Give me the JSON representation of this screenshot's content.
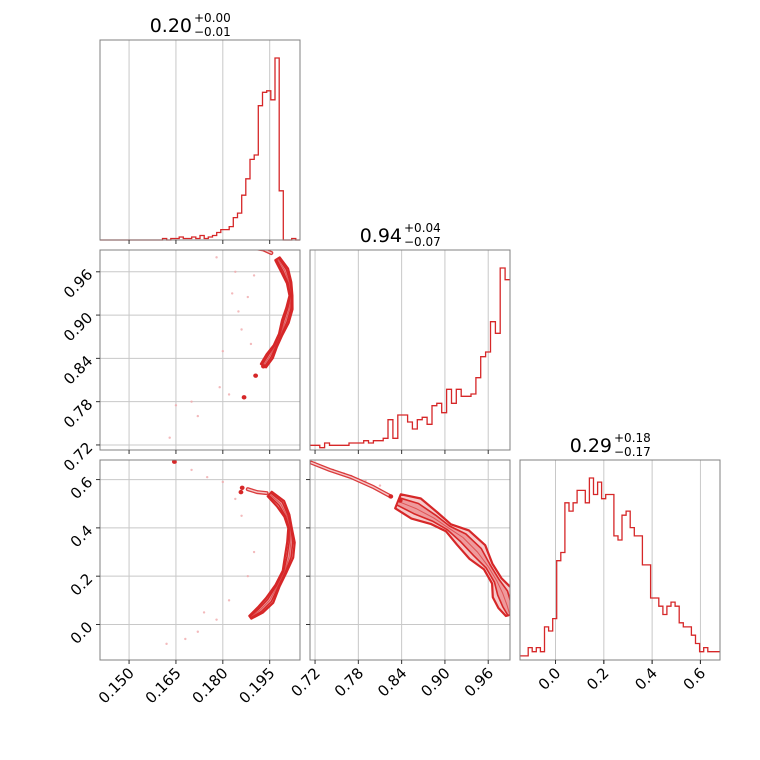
{
  "chart_data": {
    "type": "corner",
    "color": "#d62728",
    "grid": true,
    "parameters": [
      {
        "title": {
          "value": "0.20",
          "plus": "+0.00",
          "minus": "−0.01"
        },
        "range": [
          0.1407,
          0.2047
        ],
        "ticks": [
          0.15,
          0.165,
          0.18,
          0.195
        ],
        "tick_labels": [
          "0.150",
          "0.165",
          "0.180",
          "0.195"
        ],
        "histogram": [
          0,
          0,
          0,
          0,
          0,
          0,
          0,
          0,
          0,
          0,
          0,
          0,
          0,
          0,
          0,
          1,
          0,
          1,
          1,
          2,
          1,
          1,
          2,
          1,
          3,
          1,
          2,
          3,
          5,
          7,
          7,
          9,
          15,
          18,
          30,
          41,
          54,
          57,
          90,
          99,
          100,
          94,
          122,
          33,
          0,
          0,
          1,
          0
        ]
      },
      {
        "title": {
          "value": "0.94",
          "plus": "+0.04",
          "minus": "−0.07"
        },
        "range": [
          0.713,
          0.9902
        ],
        "ticks": [
          0.72,
          0.78,
          0.84,
          0.9,
          0.96
        ],
        "tick_labels": [
          "0.72",
          "0.78",
          "0.84",
          "0.90",
          "0.96"
        ],
        "histogram": [
          2,
          2,
          1,
          3,
          2,
          2,
          2,
          2,
          3,
          3,
          3,
          4,
          3,
          4,
          4,
          5,
          13,
          5,
          15,
          15,
          12,
          9,
          13,
          14,
          11,
          19,
          20,
          16,
          26,
          20,
          26,
          23,
          23,
          24,
          31,
          40,
          42,
          55,
          50,
          78,
          73
        ]
      },
      {
        "title": {
          "value": "0.29",
          "plus": "+0.18",
          "minus": "−0.17"
        },
        "range": [
          -0.147,
          0.681
        ],
        "ticks": [
          0.0,
          0.2,
          0.4,
          0.6
        ],
        "tick_labels": [
          "0.0",
          "0.2",
          "0.4",
          "0.6"
        ],
        "histogram": [
          1,
          1,
          3,
          2,
          3,
          2,
          8,
          7,
          10,
          24,
          26,
          38,
          36,
          38,
          41,
          41,
          38,
          44,
          40,
          43,
          39,
          40,
          40,
          30,
          29,
          35,
          36,
          32,
          30,
          30,
          23,
          23,
          15,
          15,
          13,
          11,
          13,
          14,
          13,
          9,
          8,
          8,
          6,
          4,
          2,
          3,
          2,
          2,
          2
        ]
      }
    ],
    "pairs": [
      {
        "x_param": 0,
        "y_param": 1,
        "band": [
          [
            0.1975,
            0.978
          ],
          [
            0.1998,
            0.962
          ],
          [
            0.2012,
            0.945
          ],
          [
            0.2018,
            0.927
          ],
          [
            0.2013,
            0.909
          ],
          [
            0.2,
            0.891
          ],
          [
            0.1985,
            0.873
          ],
          [
            0.1968,
            0.857
          ],
          [
            0.195,
            0.843
          ],
          [
            0.193,
            0.83
          ]
        ],
        "band_halfwidth": 0.0011,
        "head": [
          [
            0.187,
            0.995
          ],
          [
            0.19,
            0.993
          ],
          [
            0.193,
            0.991
          ],
          [
            0.1955,
            0.986
          ]
        ],
        "scatter": [
          [
            0.178,
            0.98
          ],
          [
            0.183,
            0.93
          ],
          [
            0.186,
            0.88
          ],
          [
            0.189,
            0.86
          ],
          [
            0.182,
            0.79
          ],
          [
            0.179,
            0.8
          ],
          [
            0.17,
            0.78
          ],
          [
            0.165,
            0.775
          ],
          [
            0.163,
            0.73
          ],
          [
            0.172,
            0.76
          ],
          [
            0.185,
            0.905
          ],
          [
            0.19,
            0.955
          ],
          [
            0.18,
            0.85
          ],
          [
            0.188,
            0.925
          ],
          [
            0.184,
            0.96
          ]
        ],
        "blobs": [
          [
            0.193,
            0.829
          ],
          [
            0.1905,
            0.816
          ],
          [
            0.1868,
            0.786
          ]
        ]
      },
      {
        "x_param": 0,
        "y_param": 2,
        "band": [
          [
            0.195,
            0.54
          ],
          [
            0.1985,
            0.5
          ],
          [
            0.2005,
            0.45
          ],
          [
            0.2015,
            0.4
          ],
          [
            0.2018,
            0.34
          ],
          [
            0.2012,
            0.28
          ],
          [
            0.1998,
            0.22
          ],
          [
            0.1975,
            0.16
          ],
          [
            0.195,
            0.1
          ],
          [
            0.192,
            0.06
          ],
          [
            0.1888,
            0.03
          ]
        ],
        "band_halfwidth": 0.0013,
        "head": [
          [
            0.188,
            0.56
          ],
          [
            0.191,
            0.548
          ],
          [
            0.194,
            0.544
          ]
        ],
        "scatter": [
          [
            0.17,
            0.64
          ],
          [
            0.175,
            0.61
          ],
          [
            0.18,
            0.59
          ],
          [
            0.165,
            0.67
          ],
          [
            0.184,
            0.52
          ],
          [
            0.186,
            0.45
          ],
          [
            0.178,
            0.02
          ],
          [
            0.172,
            -0.03
          ],
          [
            0.168,
            -0.06
          ],
          [
            0.162,
            -0.08
          ],
          [
            0.19,
            0.3
          ],
          [
            0.188,
            0.2
          ],
          [
            0.182,
            0.1
          ],
          [
            0.174,
            0.05
          ]
        ],
        "blobs": [
          [
            0.1645,
            0.674
          ],
          [
            0.1862,
            0.566
          ],
          [
            0.1858,
            0.548
          ]
        ]
      },
      {
        "x_param": 1,
        "y_param": 2,
        "band": [
          [
            0.835,
            0.51
          ],
          [
            0.86,
            0.48
          ],
          [
            0.885,
            0.44
          ],
          [
            0.905,
            0.4
          ],
          [
            0.925,
            0.36
          ],
          [
            0.945,
            0.3
          ],
          [
            0.96,
            0.24
          ],
          [
            0.972,
            0.18
          ],
          [
            0.98,
            0.13
          ],
          [
            0.986,
            0.08
          ],
          [
            0.99,
            0.04
          ]
        ],
        "band_halfwidth": 0.014,
        "head": [
          [
            0.715,
            0.67
          ],
          [
            0.74,
            0.64
          ],
          [
            0.77,
            0.61
          ],
          [
            0.8,
            0.57
          ],
          [
            0.825,
            0.53
          ]
        ],
        "scatter": [
          [
            0.72,
            0.66
          ],
          [
            0.745,
            0.64
          ],
          [
            0.77,
            0.615
          ],
          [
            0.79,
            0.595
          ],
          [
            0.81,
            0.575
          ],
          [
            0.73,
            0.655
          ],
          [
            0.76,
            0.625
          ]
        ],
        "blobs": [
          [
            0.825,
            0.53
          ],
          [
            0.838,
            0.513
          ]
        ]
      }
    ]
  }
}
